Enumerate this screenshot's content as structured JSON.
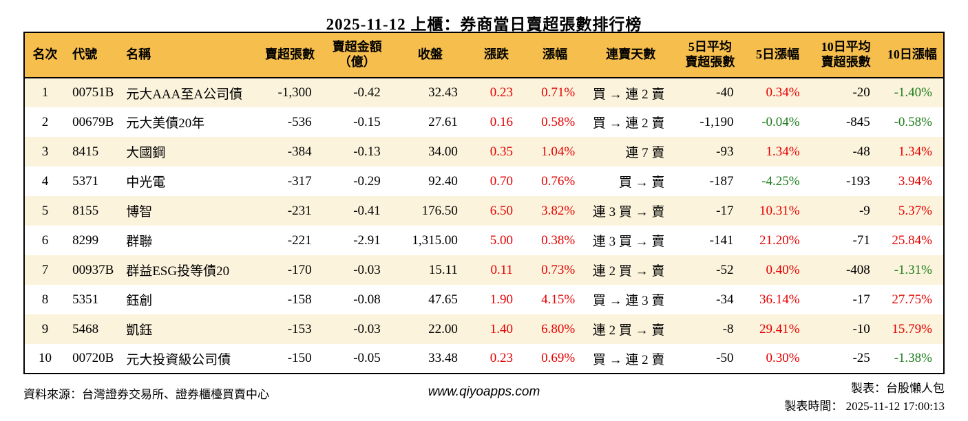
{
  "title": "2025-11-12 上櫃：券商當日賣超張數排行榜",
  "colors": {
    "header_bg": "#F5BE4D",
    "row_alt_bg": "#FBF3DC",
    "row_bg": "#FFFFFF",
    "up_red": "#E60000",
    "down_green": "#1E7E1E",
    "border": "#000000"
  },
  "chart_data": {
    "type": "table",
    "title": "2025-11-12 上櫃：券商當日賣超張數排行榜",
    "columns": [
      {
        "key": "rank",
        "label": "名次",
        "align": "center"
      },
      {
        "key": "code",
        "label": "代號",
        "align": "left"
      },
      {
        "key": "name",
        "label": "名稱",
        "align": "left"
      },
      {
        "key": "sell-qty",
        "label": "賣超張數",
        "align": "right"
      },
      {
        "key": "sell-amt",
        "label": "賣超金額\n（億）",
        "align": "right"
      },
      {
        "key": "close",
        "label": "收盤",
        "align": "right"
      },
      {
        "key": "change",
        "label": "漲跌",
        "align": "right"
      },
      {
        "key": "change-pct",
        "label": "漲幅",
        "align": "right"
      },
      {
        "key": "streak",
        "label": "連賣天數",
        "align": "right"
      },
      {
        "key": "avg5",
        "label": "5日平均\n賣超張數",
        "align": "right"
      },
      {
        "key": "pct5",
        "label": "5日漲幅",
        "align": "right"
      },
      {
        "key": "avg10",
        "label": "10日平均\n賣超張數",
        "align": "right"
      },
      {
        "key": "pct10",
        "label": "10日漲幅",
        "align": "right"
      }
    ],
    "rows": [
      {
        "cells": [
          {
            "v": "1"
          },
          {
            "v": "00751B"
          },
          {
            "v": "元大AAA至A公司債"
          },
          {
            "v": "-1,300"
          },
          {
            "v": "-0.42"
          },
          {
            "v": "32.43"
          },
          {
            "v": "0.23",
            "c": "red"
          },
          {
            "v": "0.71%",
            "c": "red"
          },
          {
            "v": "買 → 連 2 賣"
          },
          {
            "v": "-40"
          },
          {
            "v": "0.34%",
            "c": "red"
          },
          {
            "v": "-20"
          },
          {
            "v": "-1.40%",
            "c": "green"
          }
        ]
      },
      {
        "cells": [
          {
            "v": "2"
          },
          {
            "v": "00679B"
          },
          {
            "v": "元大美債20年"
          },
          {
            "v": "-536"
          },
          {
            "v": "-0.15"
          },
          {
            "v": "27.61"
          },
          {
            "v": "0.16",
            "c": "red"
          },
          {
            "v": "0.58%",
            "c": "red"
          },
          {
            "v": "買 → 連 2 賣"
          },
          {
            "v": "-1,190"
          },
          {
            "v": "-0.04%",
            "c": "green"
          },
          {
            "v": "-845"
          },
          {
            "v": "-0.58%",
            "c": "green"
          }
        ]
      },
      {
        "cells": [
          {
            "v": "3"
          },
          {
            "v": "8415"
          },
          {
            "v": "大國鋼"
          },
          {
            "v": "-384"
          },
          {
            "v": "-0.13"
          },
          {
            "v": "34.00"
          },
          {
            "v": "0.35",
            "c": "red"
          },
          {
            "v": "1.04%",
            "c": "red"
          },
          {
            "v": "連 7 賣"
          },
          {
            "v": "-93"
          },
          {
            "v": "1.34%",
            "c": "red"
          },
          {
            "v": "-48"
          },
          {
            "v": "1.34%",
            "c": "red"
          }
        ]
      },
      {
        "cells": [
          {
            "v": "4"
          },
          {
            "v": "5371"
          },
          {
            "v": "中光電"
          },
          {
            "v": "-317"
          },
          {
            "v": "-0.29"
          },
          {
            "v": "92.40"
          },
          {
            "v": "0.70",
            "c": "red"
          },
          {
            "v": "0.76%",
            "c": "red"
          },
          {
            "v": "買 → 賣"
          },
          {
            "v": "-187"
          },
          {
            "v": "-4.25%",
            "c": "green"
          },
          {
            "v": "-193"
          },
          {
            "v": "3.94%",
            "c": "red"
          }
        ]
      },
      {
        "cells": [
          {
            "v": "5"
          },
          {
            "v": "8155"
          },
          {
            "v": "博智"
          },
          {
            "v": "-231"
          },
          {
            "v": "-0.41"
          },
          {
            "v": "176.50"
          },
          {
            "v": "6.50",
            "c": "red"
          },
          {
            "v": "3.82%",
            "c": "red"
          },
          {
            "v": "連 3 買 → 賣"
          },
          {
            "v": "-17"
          },
          {
            "v": "10.31%",
            "c": "red"
          },
          {
            "v": "-9"
          },
          {
            "v": "5.37%",
            "c": "red"
          }
        ]
      },
      {
        "cells": [
          {
            "v": "6"
          },
          {
            "v": "8299"
          },
          {
            "v": "群聯"
          },
          {
            "v": "-221"
          },
          {
            "v": "-2.91"
          },
          {
            "v": "1,315.00"
          },
          {
            "v": "5.00",
            "c": "red"
          },
          {
            "v": "0.38%",
            "c": "red"
          },
          {
            "v": "連 3 買 → 賣"
          },
          {
            "v": "-141"
          },
          {
            "v": "21.20%",
            "c": "red"
          },
          {
            "v": "-71"
          },
          {
            "v": "25.84%",
            "c": "red"
          }
        ]
      },
      {
        "cells": [
          {
            "v": "7"
          },
          {
            "v": "00937B"
          },
          {
            "v": "群益ESG投等債20"
          },
          {
            "v": "-170"
          },
          {
            "v": "-0.03"
          },
          {
            "v": "15.11"
          },
          {
            "v": "0.11",
            "c": "red"
          },
          {
            "v": "0.73%",
            "c": "red"
          },
          {
            "v": "連 2 買 → 賣"
          },
          {
            "v": "-52"
          },
          {
            "v": "0.40%",
            "c": "red"
          },
          {
            "v": "-408"
          },
          {
            "v": "-1.31%",
            "c": "green"
          }
        ]
      },
      {
        "cells": [
          {
            "v": "8"
          },
          {
            "v": "5351"
          },
          {
            "v": "鈺創"
          },
          {
            "v": "-158"
          },
          {
            "v": "-0.08"
          },
          {
            "v": "47.65"
          },
          {
            "v": "1.90",
            "c": "red"
          },
          {
            "v": "4.15%",
            "c": "red"
          },
          {
            "v": "買 → 連 3 賣"
          },
          {
            "v": "-34"
          },
          {
            "v": "36.14%",
            "c": "red"
          },
          {
            "v": "-17"
          },
          {
            "v": "27.75%",
            "c": "red"
          }
        ]
      },
      {
        "cells": [
          {
            "v": "9"
          },
          {
            "v": "5468"
          },
          {
            "v": "凱鈺"
          },
          {
            "v": "-153"
          },
          {
            "v": "-0.03"
          },
          {
            "v": "22.00"
          },
          {
            "v": "1.40",
            "c": "red"
          },
          {
            "v": "6.80%",
            "c": "red"
          },
          {
            "v": "連 2 買 → 賣"
          },
          {
            "v": "-8"
          },
          {
            "v": "29.41%",
            "c": "red"
          },
          {
            "v": "-10"
          },
          {
            "v": "15.79%",
            "c": "red"
          }
        ]
      },
      {
        "cells": [
          {
            "v": "10"
          },
          {
            "v": "00720B"
          },
          {
            "v": "元大投資級公司債"
          },
          {
            "v": "-150"
          },
          {
            "v": "-0.05"
          },
          {
            "v": "33.48"
          },
          {
            "v": "0.23",
            "c": "red"
          },
          {
            "v": "0.69%",
            "c": "red"
          },
          {
            "v": "買 → 連 2 賣"
          },
          {
            "v": "-50"
          },
          {
            "v": "0.30%",
            "c": "red"
          },
          {
            "v": "-25"
          },
          {
            "v": "-1.38%",
            "c": "green"
          }
        ]
      }
    ]
  },
  "footer": {
    "source": "資料來源：台灣證券交易所、證券櫃檯買賣中心",
    "website": "www.qiyoapps.com",
    "maker": "製表：台股懶人包",
    "made_time": "製表時間： 2025-11-12 17:00:13"
  }
}
